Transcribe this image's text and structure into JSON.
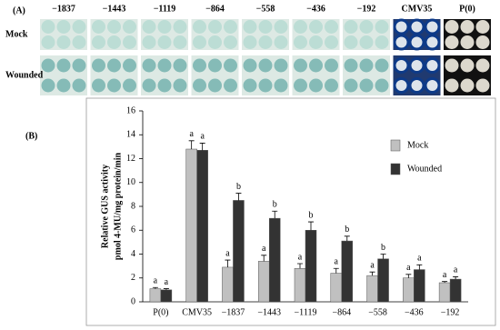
{
  "panel_a": {
    "label": "(A)",
    "columns": [
      "−1837",
      "−1443",
      "−1119",
      "−864",
      "−558",
      "−436",
      "−192",
      "CMV35",
      "P(0)"
    ],
    "rows": [
      "Mock",
      "Wounded"
    ]
  },
  "chart_data": {
    "type": "bar",
    "panel_label": "(B)",
    "ylabel": "Relative GUS activity",
    "ylabel_unit": "pmol 4-MU/mg protein/min",
    "categories": [
      "P(0)",
      "CMV35",
      "−1837",
      "−1443",
      "−1119",
      "−864",
      "−558",
      "−436",
      "−192"
    ],
    "series": [
      {
        "name": "Mock",
        "color": "#c0c0c0",
        "values": [
          1.1,
          12.8,
          2.9,
          3.4,
          2.8,
          2.4,
          2.2,
          2.0,
          1.6
        ],
        "errors": [
          0.1,
          0.7,
          0.6,
          0.5,
          0.4,
          0.4,
          0.3,
          0.3,
          0.1
        ],
        "letters": [
          "a",
          "a",
          "a",
          "a",
          "a",
          "a",
          "a",
          "a",
          "a"
        ]
      },
      {
        "name": "Wounded",
        "color": "#333333",
        "values": [
          1.0,
          12.7,
          8.5,
          7.0,
          6.0,
          5.1,
          3.6,
          2.7,
          1.9
        ],
        "errors": [
          0.1,
          0.6,
          0.6,
          0.6,
          0.7,
          0.4,
          0.4,
          0.4,
          0.2
        ],
        "letters": [
          "a",
          "a",
          "b",
          "b",
          "b",
          "b",
          "b",
          "a",
          "a"
        ]
      }
    ],
    "ylim": [
      0,
      16
    ],
    "yticks": [
      0,
      2,
      4,
      6,
      8,
      10,
      12,
      14,
      16
    ],
    "grid": false,
    "legend": "upper-right"
  }
}
